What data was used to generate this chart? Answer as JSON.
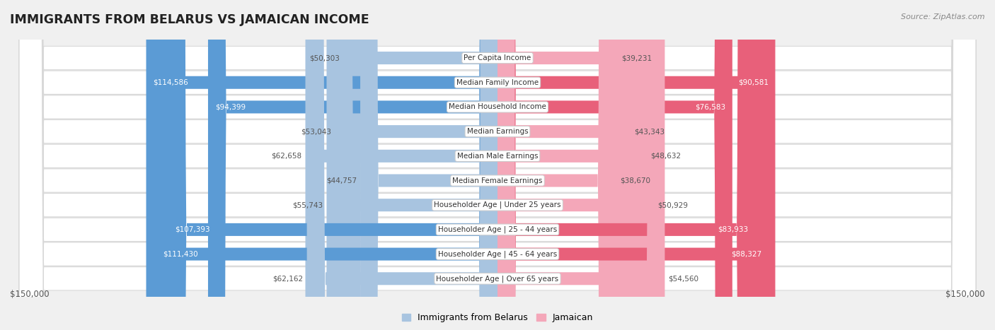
{
  "title": "IMMIGRANTS FROM BELARUS VS JAMAICAN INCOME",
  "source": "Source: ZipAtlas.com",
  "categories": [
    "Per Capita Income",
    "Median Family Income",
    "Median Household Income",
    "Median Earnings",
    "Median Male Earnings",
    "Median Female Earnings",
    "Householder Age | Under 25 years",
    "Householder Age | 25 - 44 years",
    "Householder Age | 45 - 64 years",
    "Householder Age | Over 65 years"
  ],
  "belarus_values": [
    50303,
    114586,
    94399,
    53043,
    62658,
    44757,
    55743,
    107393,
    111430,
    62162
  ],
  "jamaican_values": [
    39231,
    90581,
    76583,
    43343,
    48632,
    38670,
    50929,
    83933,
    88327,
    54560
  ],
  "belarus_labels": [
    "$50,303",
    "$114,586",
    "$94,399",
    "$53,043",
    "$62,658",
    "$44,757",
    "$55,743",
    "$107,393",
    "$111,430",
    "$62,162"
  ],
  "jamaican_labels": [
    "$39,231",
    "$90,581",
    "$76,583",
    "$43,343",
    "$48,632",
    "$38,670",
    "$50,929",
    "$83,933",
    "$88,327",
    "$54,560"
  ],
  "max_value": 150000,
  "belarus_color_light": "#a8c4e0",
  "belarus_color_dark": "#5b9bd5",
  "jamaican_color_light": "#f4a7b9",
  "jamaican_color_dark": "#e8607a",
  "label_color_dark": "#555555",
  "label_color_white": "#ffffff",
  "bg_color": "#f0f0f0",
  "row_bg_color": "#ffffff",
  "row_edge_color": "#d8d8d8",
  "legend_belarus": "Immigrants from Belarus",
  "legend_jamaican": "Jamaican",
  "x_tick_left": "$150,000",
  "x_tick_right": "$150,000",
  "white_label_thresh": 75000
}
